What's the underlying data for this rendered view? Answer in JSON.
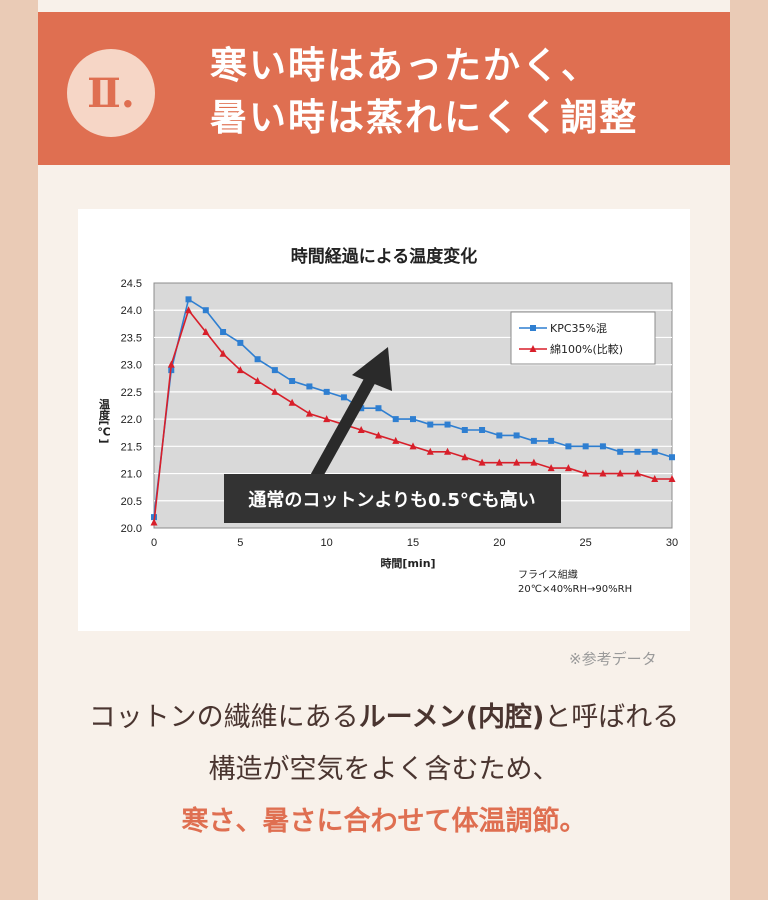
{
  "header": {
    "badge": "Ⅱ.",
    "title_line1": "寒い時はあったかく、",
    "title_line2": "暑い時は蒸れにくく調整"
  },
  "chart_data": {
    "type": "line",
    "title": "時間経過による温度変化",
    "xlabel": "時間[min]",
    "ylabel": "温度[℃]",
    "xlim": [
      0,
      30
    ],
    "ylim": [
      20.0,
      24.5
    ],
    "x_ticks": [
      0,
      5,
      10,
      15,
      20,
      25,
      30
    ],
    "y_ticks": [
      20.0,
      20.5,
      21.0,
      21.5,
      22.0,
      22.5,
      23.0,
      23.5,
      24.0,
      24.5
    ],
    "grid": true,
    "legend_position": "top-right",
    "x": [
      0,
      1,
      2,
      3,
      4,
      5,
      6,
      7,
      8,
      9,
      10,
      11,
      12,
      13,
      14,
      15,
      16,
      17,
      18,
      19,
      20,
      21,
      22,
      23,
      24,
      25,
      26,
      27,
      28,
      29,
      30
    ],
    "series": [
      {
        "name": "KPC35%混",
        "color": "#2f7fd1",
        "marker": "square",
        "values": [
          20.2,
          22.9,
          24.2,
          24.0,
          23.6,
          23.4,
          23.1,
          22.9,
          22.7,
          22.6,
          22.5,
          22.4,
          22.2,
          22.2,
          22.0,
          22.0,
          21.9,
          21.9,
          21.8,
          21.8,
          21.7,
          21.7,
          21.6,
          21.6,
          21.5,
          21.5,
          21.5,
          21.4,
          21.4,
          21.4,
          21.3
        ]
      },
      {
        "name": "綿100%(比較)",
        "color": "#d81f2a",
        "marker": "triangle",
        "values": [
          20.1,
          23.0,
          24.0,
          23.6,
          23.2,
          22.9,
          22.7,
          22.5,
          22.3,
          22.1,
          22.0,
          21.9,
          21.8,
          21.7,
          21.6,
          21.5,
          21.4,
          21.4,
          21.3,
          21.2,
          21.2,
          21.2,
          21.2,
          21.1,
          21.1,
          21.0,
          21.0,
          21.0,
          21.0,
          20.9,
          20.9
        ]
      }
    ],
    "annotation": "通常のコットンよりも0.5℃も高い",
    "note_line1": "フライス組織",
    "note_line2": "20℃×40%RH→90%RH"
  },
  "ref_note": "※参考データ",
  "body": {
    "line1_a": "コットンの繊維にある",
    "line1_b": "ルーメン(内腔)",
    "line1_c": "と呼ばれる",
    "line2": "構造が空気をよく含むため、",
    "line3": "寒さ、暑さに合わせて体温調節。"
  }
}
